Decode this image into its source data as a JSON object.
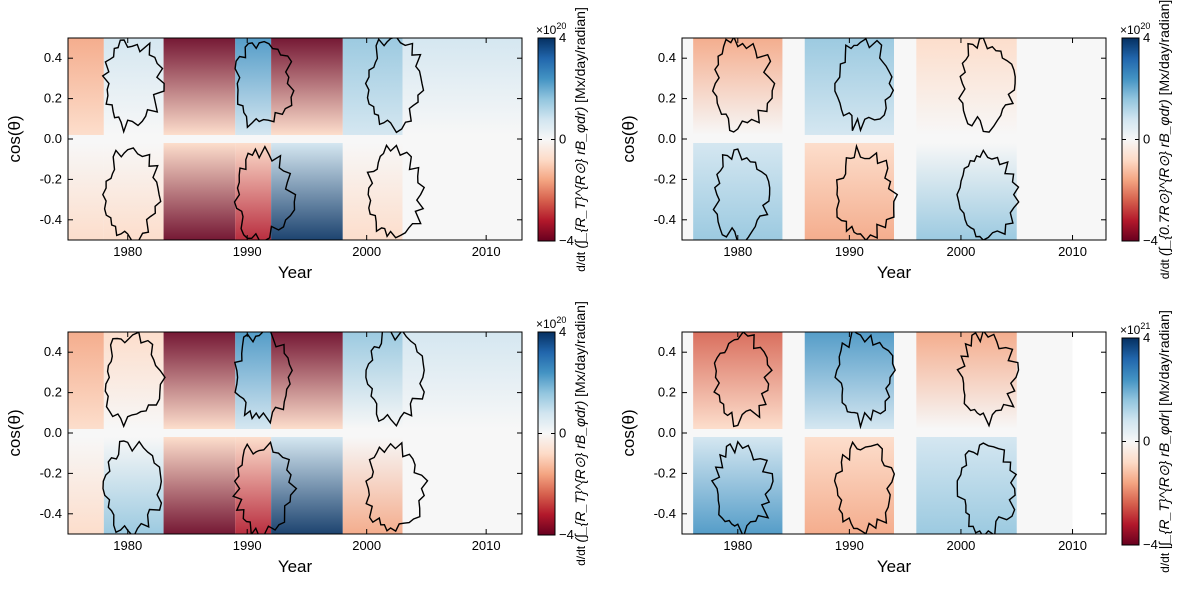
{
  "figure": {
    "colormap": [
      "#67001f",
      "#b2182b",
      "#d6604d",
      "#f4a582",
      "#fddbc7",
      "#f7f7f7",
      "#d1e5f0",
      "#92c5de",
      "#4393c3",
      "#2166ac",
      "#053061"
    ]
  },
  "chart_data": [
    {
      "type": "heatmap",
      "panel": "top-left",
      "xlabel": "Year",
      "ylabel": "cos(θ)",
      "xlim": [
        1975,
        2013
      ],
      "ylim": [
        -0.5,
        0.5
      ],
      "xticks": [
        "1980",
        "1990",
        "2000",
        "2010"
      ],
      "yticks": [
        "-0.4",
        "-0.2",
        "0.0",
        "0.2",
        "0.4"
      ],
      "colorbar": {
        "multiplier_base": "×10",
        "multiplier_exp": "20",
        "ticks": [
          "4",
          "0",
          "−4"
        ],
        "range": [
          -4,
          4
        ],
        "label_prefix": "d/dt",
        "label_math": "(∫_{R_T}^{R⊙} rB_φdr)",
        "label_units": "[Mx/day/radian]"
      },
      "bands": [
        {
          "x0": 1975,
          "x1": 1978,
          "north": -0.5,
          "south": -0.3
        },
        {
          "x0": 1978,
          "x1": 1983,
          "north": 0.2,
          "south": -0.2
        },
        {
          "x0": 1983,
          "x1": 1989,
          "north": -0.9,
          "south": -1.0
        },
        {
          "x0": 1989,
          "x1": 1992,
          "north": 0.6,
          "south": -0.8
        },
        {
          "x0": 1992,
          "x1": 1998,
          "north": -1.0,
          "south": 1.0
        },
        {
          "x0": 1998,
          "x1": 2003,
          "north": 0.4,
          "south": -0.3
        },
        {
          "x0": 2003,
          "x1": 2013,
          "north": 0.1,
          "south": -0.1
        }
      ]
    },
    {
      "type": "heatmap",
      "panel": "top-right",
      "xlabel": "Year",
      "ylabel": "cos(θ)",
      "xlim": [
        1975,
        2013
      ],
      "ylim": [
        -0.5,
        0.5
      ],
      "xticks": [
        "1980",
        "1990",
        "2000",
        "2010"
      ],
      "yticks": [
        "-0.4",
        "-0.2",
        "0.0",
        "0.2",
        "0.4"
      ],
      "colorbar": {
        "multiplier_base": "×10",
        "multiplier_exp": "20",
        "ticks": [
          "4",
          "0",
          "−4"
        ],
        "range": [
          -4,
          4
        ],
        "label_prefix": "d/dt",
        "label_math": "(∫_{0.7R⊙}^{R⊙} rB_φdr)",
        "label_units": "[Mx/day/radian]"
      },
      "bands": [
        {
          "x0": 1976,
          "x1": 1984,
          "north": -0.4,
          "south": 0.4
        },
        {
          "x0": 1986,
          "x1": 1994,
          "north": 0.4,
          "south": -0.5
        },
        {
          "x0": 1996,
          "x1": 2005,
          "north": -0.3,
          "south": 0.3
        }
      ]
    },
    {
      "type": "heatmap",
      "panel": "bottom-left",
      "xlabel": "Year",
      "ylabel": "cos(θ)",
      "xlim": [
        1975,
        2013
      ],
      "ylim": [
        -0.5,
        0.5
      ],
      "xticks": [
        "1980",
        "1990",
        "2000",
        "2010"
      ],
      "yticks": [
        "-0.4",
        "-0.2",
        "0.0",
        "0.2",
        "0.4"
      ],
      "colorbar": {
        "multiplier_base": "×10",
        "multiplier_exp": "20",
        "ticks": [
          "4",
          "0",
          "−4"
        ],
        "range": [
          -4,
          4
        ],
        "label_prefix": "d/dt",
        "label_math": "(∫_{R_T}^{R⊙} rB_φdr)",
        "label_units": "[Mx/day/radian]"
      },
      "bands": [
        {
          "x0": 1975,
          "x1": 1978,
          "north": -0.5,
          "south": -0.3
        },
        {
          "x0": 1978,
          "x1": 1983,
          "north": -0.3,
          "south": 0.3
        },
        {
          "x0": 1983,
          "x1": 1989,
          "north": -0.9,
          "south": -1.0
        },
        {
          "x0": 1989,
          "x1": 1992,
          "north": 0.6,
          "south": -0.8
        },
        {
          "x0": 1992,
          "x1": 1998,
          "north": -1.0,
          "south": 1.0
        },
        {
          "x0": 1998,
          "x1": 2003,
          "north": 0.3,
          "south": -0.4
        },
        {
          "x0": 2003,
          "x1": 2013,
          "north": 0.1,
          "south": -0.1
        }
      ]
    },
    {
      "type": "heatmap",
      "panel": "bottom-right",
      "xlabel": "Year",
      "ylabel": "cos(θ)",
      "xlim": [
        1975,
        2013
      ],
      "ylim": [
        -0.5,
        0.5
      ],
      "data_xmax": 2010,
      "xticks": [
        "1980",
        "1990",
        "2000",
        "2010"
      ],
      "yticks": [
        "-0.4",
        "-0.2",
        "0.0",
        "0.2",
        "0.4"
      ],
      "colorbar": {
        "multiplier_base": "×10",
        "multiplier_exp": "21",
        "ticks": [
          "4",
          "0",
          "−4"
        ],
        "range": [
          -4,
          4
        ],
        "label_prefix": "d/dt",
        "label_math": "|∫_{R_T}^{R⊙} rB_φdr|",
        "label_units": "[Mx/day/radian]"
      },
      "bands": [
        {
          "x0": 1976,
          "x1": 1984,
          "north": -0.6,
          "south": 0.6
        },
        {
          "x0": 1986,
          "x1": 1994,
          "north": 0.5,
          "south": -0.5
        },
        {
          "x0": 1996,
          "x1": 2005,
          "north": -0.4,
          "south": 0.4
        }
      ]
    }
  ]
}
